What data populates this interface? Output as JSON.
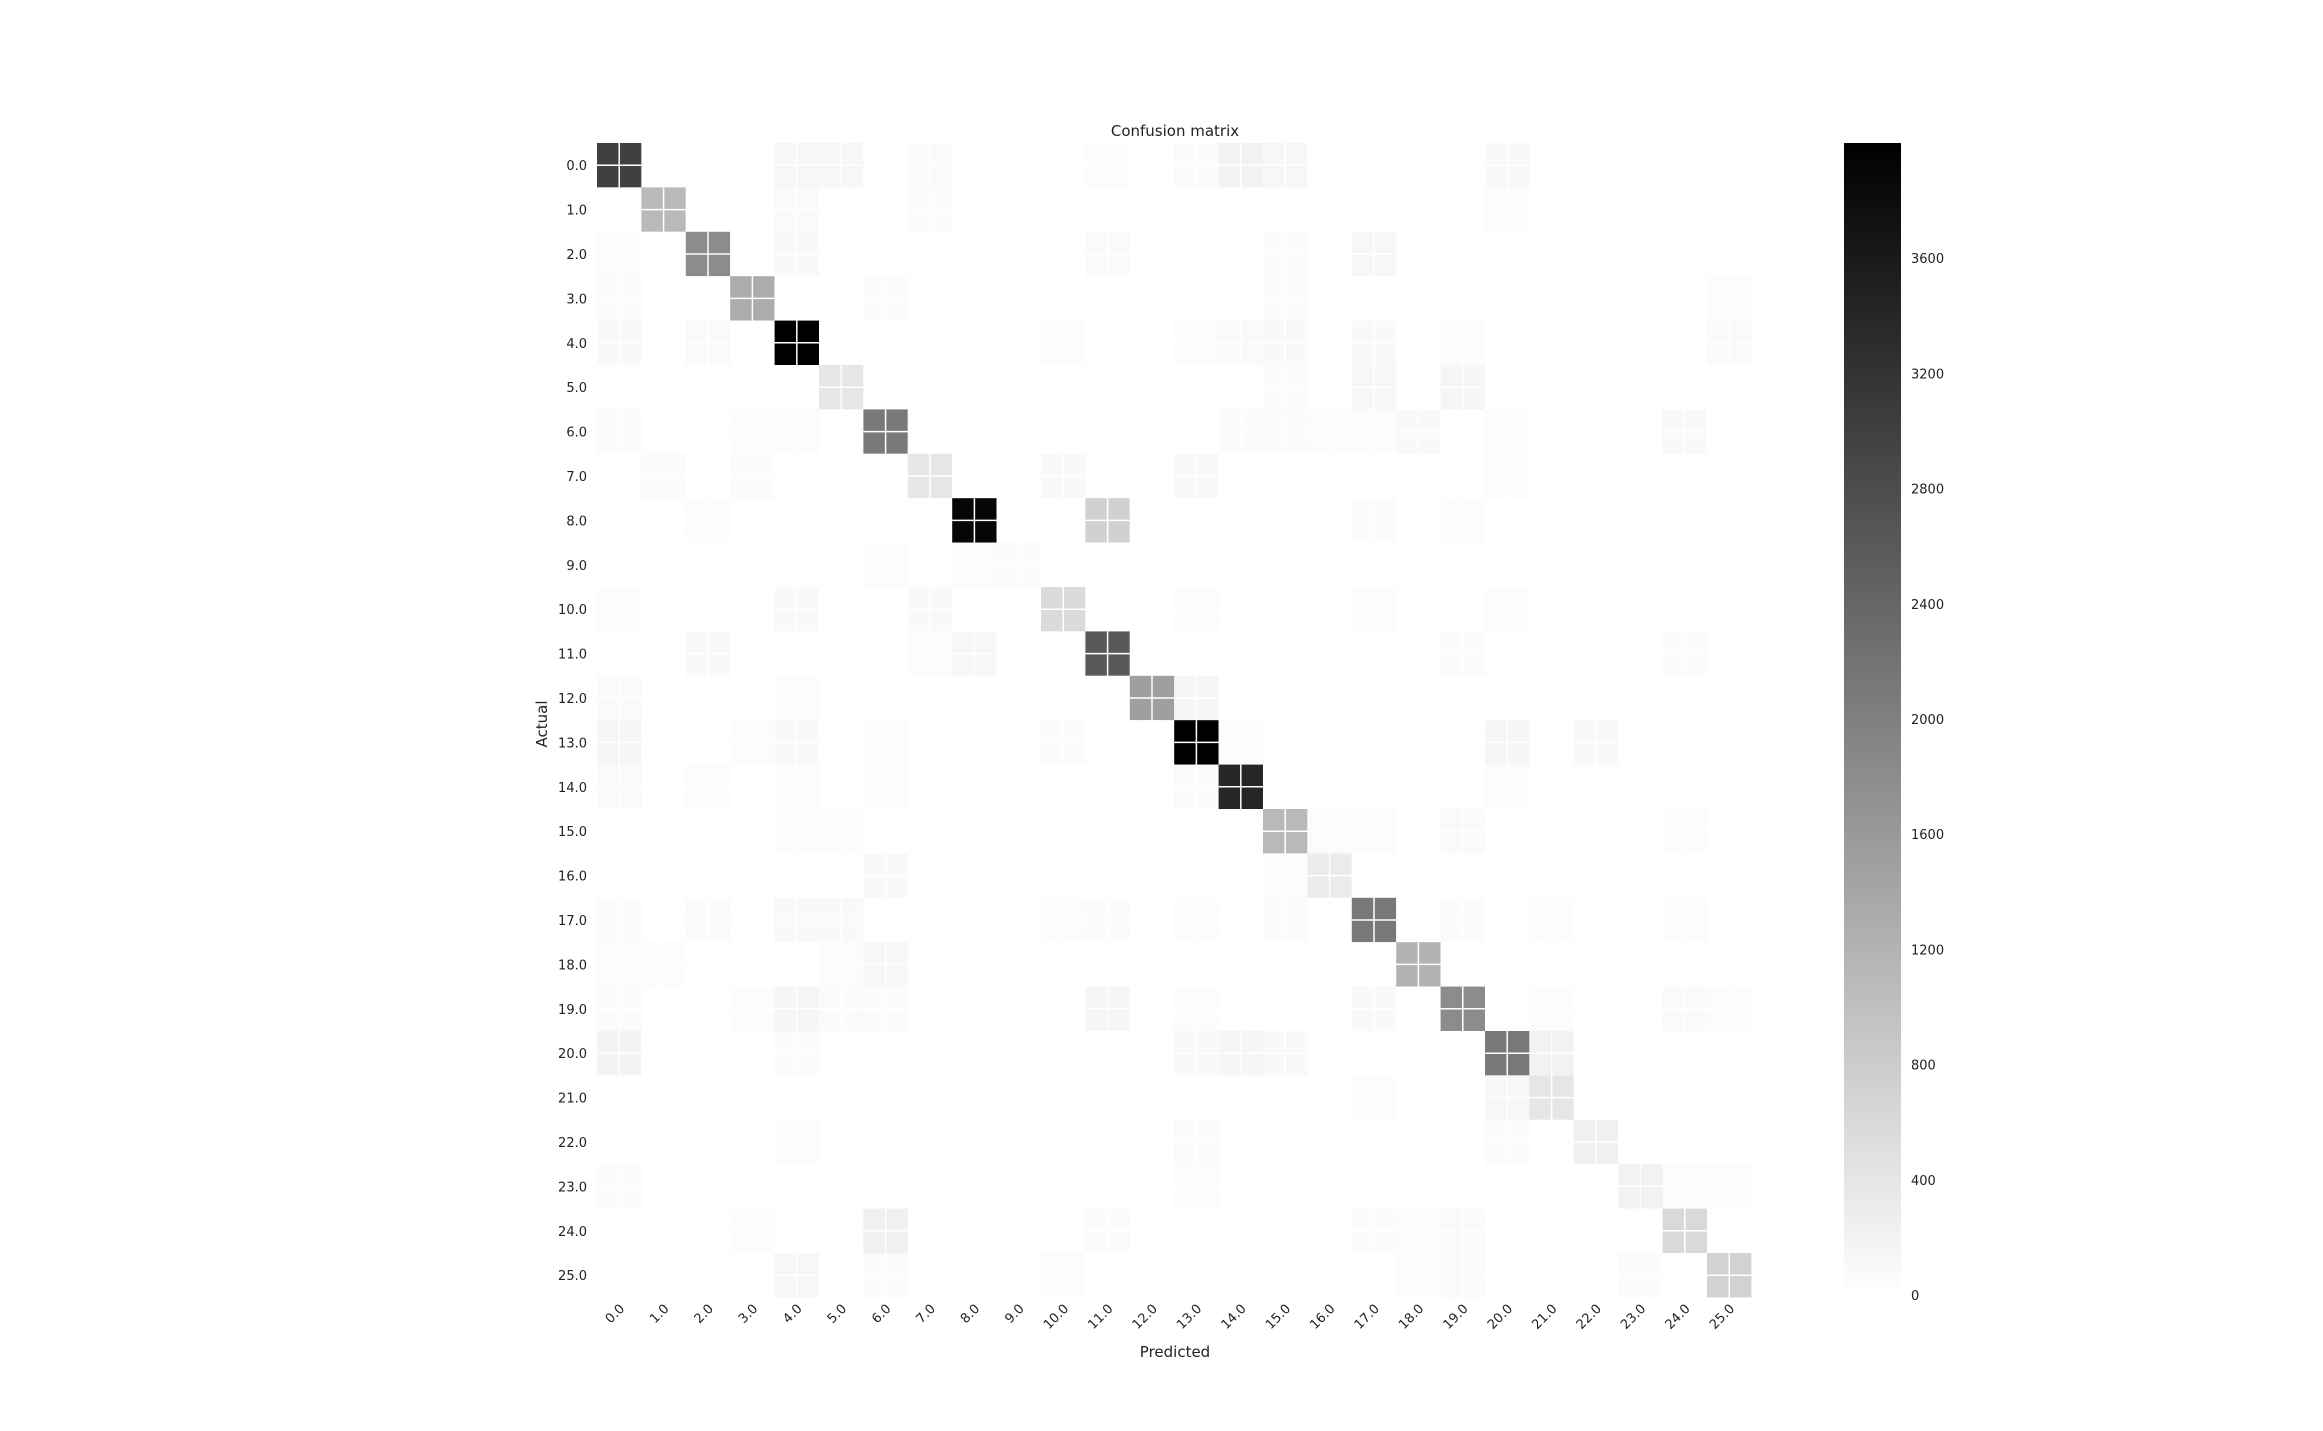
{
  "chart_data": {
    "type": "heatmap",
    "title": "Confusion matrix",
    "xlabel": "Predicted",
    "ylabel": "Actual",
    "x_categories": [
      "0.0",
      "1.0",
      "2.0",
      "3.0",
      "4.0",
      "5.0",
      "6.0",
      "7.0",
      "8.0",
      "9.0",
      "10.0",
      "11.0",
      "12.0",
      "13.0",
      "14.0",
      "15.0",
      "16.0",
      "17.0",
      "18.0",
      "19.0",
      "20.0",
      "21.0",
      "22.0",
      "23.0",
      "24.0",
      "25.0"
    ],
    "y_categories": [
      "0.0",
      "1.0",
      "2.0",
      "3.0",
      "4.0",
      "5.0",
      "6.0",
      "7.0",
      "8.0",
      "9.0",
      "10.0",
      "11.0",
      "12.0",
      "13.0",
      "14.0",
      "15.0",
      "16.0",
      "17.0",
      "18.0",
      "19.0",
      "20.0",
      "21.0",
      "22.0",
      "23.0",
      "24.0",
      "25.0"
    ],
    "colormap": "gray_r",
    "vmin": 0,
    "vmax": 4000,
    "colorbar_ticks": [
      0,
      400,
      800,
      1200,
      1600,
      2000,
      2400,
      2800,
      3200,
      3600
    ],
    "grid": true,
    "values": [
      [
        3000,
        0,
        0,
        0,
        120,
        120,
        0,
        80,
        0,
        0,
        0,
        40,
        0,
        60,
        200,
        120,
        0,
        0,
        0,
        0,
        100,
        0,
        0,
        0,
        0,
        0
      ],
      [
        0,
        1100,
        0,
        0,
        80,
        0,
        0,
        60,
        0,
        0,
        0,
        0,
        0,
        0,
        0,
        0,
        0,
        0,
        0,
        0,
        40,
        0,
        0,
        0,
        0,
        0
      ],
      [
        40,
        0,
        1800,
        0,
        100,
        0,
        0,
        0,
        0,
        0,
        0,
        80,
        0,
        0,
        0,
        60,
        0,
        120,
        0,
        0,
        0,
        0,
        0,
        0,
        0,
        0
      ],
      [
        60,
        0,
        0,
        1300,
        0,
        0,
        60,
        0,
        0,
        0,
        0,
        0,
        0,
        0,
        0,
        60,
        0,
        0,
        0,
        0,
        0,
        0,
        0,
        0,
        0,
        40
      ],
      [
        100,
        0,
        80,
        0,
        4000,
        0,
        0,
        0,
        0,
        0,
        40,
        0,
        0,
        40,
        80,
        100,
        0,
        100,
        0,
        40,
        0,
        0,
        0,
        0,
        0,
        80
      ],
      [
        0,
        0,
        0,
        0,
        0,
        400,
        0,
        0,
        0,
        0,
        0,
        0,
        0,
        0,
        0,
        60,
        0,
        120,
        0,
        140,
        0,
        0,
        0,
        0,
        0,
        0
      ],
      [
        60,
        0,
        0,
        40,
        40,
        0,
        2100,
        0,
        0,
        0,
        0,
        0,
        0,
        0,
        60,
        60,
        40,
        40,
        100,
        0,
        40,
        0,
        0,
        0,
        100,
        0
      ],
      [
        0,
        60,
        0,
        60,
        0,
        0,
        0,
        400,
        0,
        0,
        100,
        0,
        0,
        100,
        0,
        0,
        0,
        0,
        0,
        0,
        40,
        0,
        0,
        0,
        0,
        0
      ],
      [
        0,
        0,
        40,
        0,
        0,
        0,
        0,
        0,
        3900,
        0,
        0,
        720,
        0,
        0,
        0,
        0,
        0,
        60,
        0,
        40,
        0,
        0,
        0,
        0,
        0,
        0
      ],
      [
        0,
        0,
        0,
        0,
        0,
        0,
        40,
        0,
        40,
        60,
        0,
        0,
        0,
        0,
        0,
        0,
        0,
        0,
        0,
        0,
        0,
        0,
        0,
        0,
        0,
        0
      ],
      [
        40,
        0,
        0,
        0,
        100,
        0,
        0,
        100,
        0,
        0,
        560,
        0,
        0,
        40,
        0,
        0,
        0,
        40,
        0,
        0,
        40,
        0,
        0,
        0,
        0,
        0
      ],
      [
        0,
        0,
        100,
        0,
        0,
        0,
        0,
        40,
        120,
        0,
        0,
        2600,
        0,
        0,
        0,
        0,
        0,
        0,
        0,
        60,
        0,
        0,
        0,
        0,
        60,
        0
      ],
      [
        80,
        0,
        0,
        0,
        40,
        0,
        0,
        0,
        0,
        0,
        0,
        0,
        1500,
        140,
        0,
        0,
        0,
        0,
        0,
        0,
        0,
        0,
        0,
        0,
        0,
        0
      ],
      [
        160,
        0,
        0,
        40,
        100,
        0,
        40,
        0,
        0,
        0,
        60,
        0,
        0,
        4000,
        40,
        0,
        0,
        0,
        0,
        0,
        140,
        0,
        100,
        0,
        0,
        0
      ],
      [
        80,
        0,
        40,
        0,
        40,
        0,
        40,
        0,
        0,
        0,
        0,
        0,
        0,
        60,
        3400,
        0,
        0,
        0,
        0,
        0,
        40,
        0,
        0,
        0,
        0,
        0
      ],
      [
        0,
        0,
        0,
        0,
        40,
        40,
        0,
        0,
        0,
        0,
        0,
        0,
        0,
        0,
        0,
        1100,
        40,
        40,
        0,
        80,
        0,
        0,
        0,
        0,
        40,
        0
      ],
      [
        0,
        0,
        0,
        0,
        0,
        0,
        100,
        0,
        0,
        0,
        0,
        0,
        0,
        0,
        0,
        40,
        320,
        0,
        0,
        0,
        0,
        0,
        0,
        0,
        0,
        0
      ],
      [
        60,
        0,
        60,
        0,
        100,
        100,
        0,
        0,
        0,
        0,
        40,
        60,
        0,
        40,
        0,
        60,
        0,
        2100,
        0,
        60,
        0,
        40,
        0,
        0,
        40,
        0
      ],
      [
        40,
        40,
        0,
        0,
        0,
        40,
        120,
        0,
        0,
        0,
        0,
        0,
        0,
        0,
        0,
        0,
        0,
        0,
        1200,
        0,
        0,
        0,
        0,
        0,
        0,
        0
      ],
      [
        60,
        0,
        0,
        40,
        140,
        60,
        60,
        0,
        0,
        0,
        0,
        140,
        0,
        40,
        0,
        0,
        0,
        100,
        0,
        1800,
        0,
        40,
        0,
        0,
        80,
        40
      ],
      [
        180,
        0,
        0,
        0,
        60,
        0,
        0,
        0,
        0,
        0,
        0,
        0,
        0,
        100,
        140,
        100,
        0,
        0,
        0,
        0,
        2100,
        200,
        0,
        0,
        0,
        0
      ],
      [
        0,
        0,
        0,
        0,
        0,
        0,
        0,
        0,
        0,
        0,
        0,
        0,
        0,
        0,
        0,
        0,
        0,
        40,
        0,
        0,
        120,
        400,
        0,
        0,
        0,
        0
      ],
      [
        0,
        0,
        0,
        0,
        40,
        0,
        0,
        0,
        0,
        0,
        0,
        0,
        0,
        60,
        0,
        0,
        0,
        0,
        0,
        0,
        60,
        0,
        240,
        0,
        0,
        0
      ],
      [
        60,
        0,
        0,
        0,
        0,
        0,
        0,
        0,
        0,
        0,
        0,
        0,
        0,
        40,
        0,
        0,
        0,
        0,
        0,
        0,
        0,
        0,
        0,
        200,
        40,
        40
      ],
      [
        0,
        0,
        0,
        40,
        0,
        0,
        240,
        0,
        0,
        0,
        0,
        60,
        0,
        0,
        0,
        0,
        0,
        60,
        40,
        80,
        0,
        0,
        0,
        0,
        600,
        0
      ],
      [
        0,
        0,
        0,
        0,
        120,
        0,
        60,
        0,
        0,
        0,
        40,
        0,
        0,
        0,
        0,
        0,
        0,
        0,
        40,
        80,
        0,
        0,
        0,
        60,
        0,
        700
      ]
    ]
  }
}
